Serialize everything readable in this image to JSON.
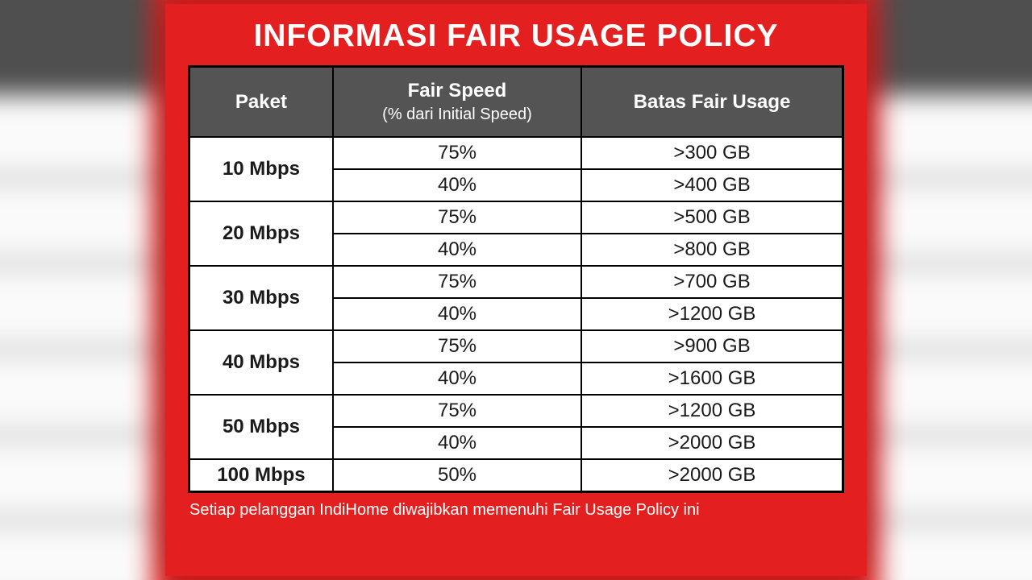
{
  "title": "INFORMASI FAIR USAGE POLICY",
  "footer": "Setiap pelanggan IndiHome diwajibkan memenuhi Fair Usage Policy ini",
  "colors": {
    "card_bg": "#e41f1f",
    "header_bg": "#545454",
    "header_text": "#ffffff",
    "cell_bg": "#ffffff",
    "cell_text": "#1a1a1a",
    "border": "#000000",
    "title_text": "#ffffff",
    "footer_text": "#ffffff"
  },
  "typography": {
    "title_fontsize": 39,
    "header_fontsize": 24,
    "header_sub_fontsize": 20,
    "cell_fontsize": 24,
    "footer_fontsize": 20,
    "font_family": "Helvetica Neue, Arial, sans-serif"
  },
  "table": {
    "type": "table",
    "column_widths_pct": [
      22,
      38,
      40
    ],
    "columns": [
      {
        "label": "Paket"
      },
      {
        "label": "Fair Speed",
        "sublabel": "(% dari Initial Speed)"
      },
      {
        "label": "Batas Fair Usage"
      }
    ],
    "groups": [
      {
        "paket": "10 Mbps",
        "rows": [
          {
            "speed": "75%",
            "usage": ">300 GB"
          },
          {
            "speed": "40%",
            "usage": ">400 GB"
          }
        ]
      },
      {
        "paket": "20 Mbps",
        "rows": [
          {
            "speed": "75%",
            "usage": ">500 GB"
          },
          {
            "speed": "40%",
            "usage": ">800 GB"
          }
        ]
      },
      {
        "paket": "30 Mbps",
        "rows": [
          {
            "speed": "75%",
            "usage": ">700 GB"
          },
          {
            "speed": "40%",
            "usage": ">1200 GB"
          }
        ]
      },
      {
        "paket": "40 Mbps",
        "rows": [
          {
            "speed": "75%",
            "usage": ">900 GB"
          },
          {
            "speed": "40%",
            "usage": ">1600 GB"
          }
        ]
      },
      {
        "paket": "50 Mbps",
        "rows": [
          {
            "speed": "75%",
            "usage": ">1200 GB"
          },
          {
            "speed": "40%",
            "usage": ">2000 GB"
          }
        ]
      },
      {
        "paket": "100 Mbps",
        "rows": [
          {
            "speed": "50%",
            "usage": ">2000 GB"
          }
        ]
      }
    ]
  }
}
